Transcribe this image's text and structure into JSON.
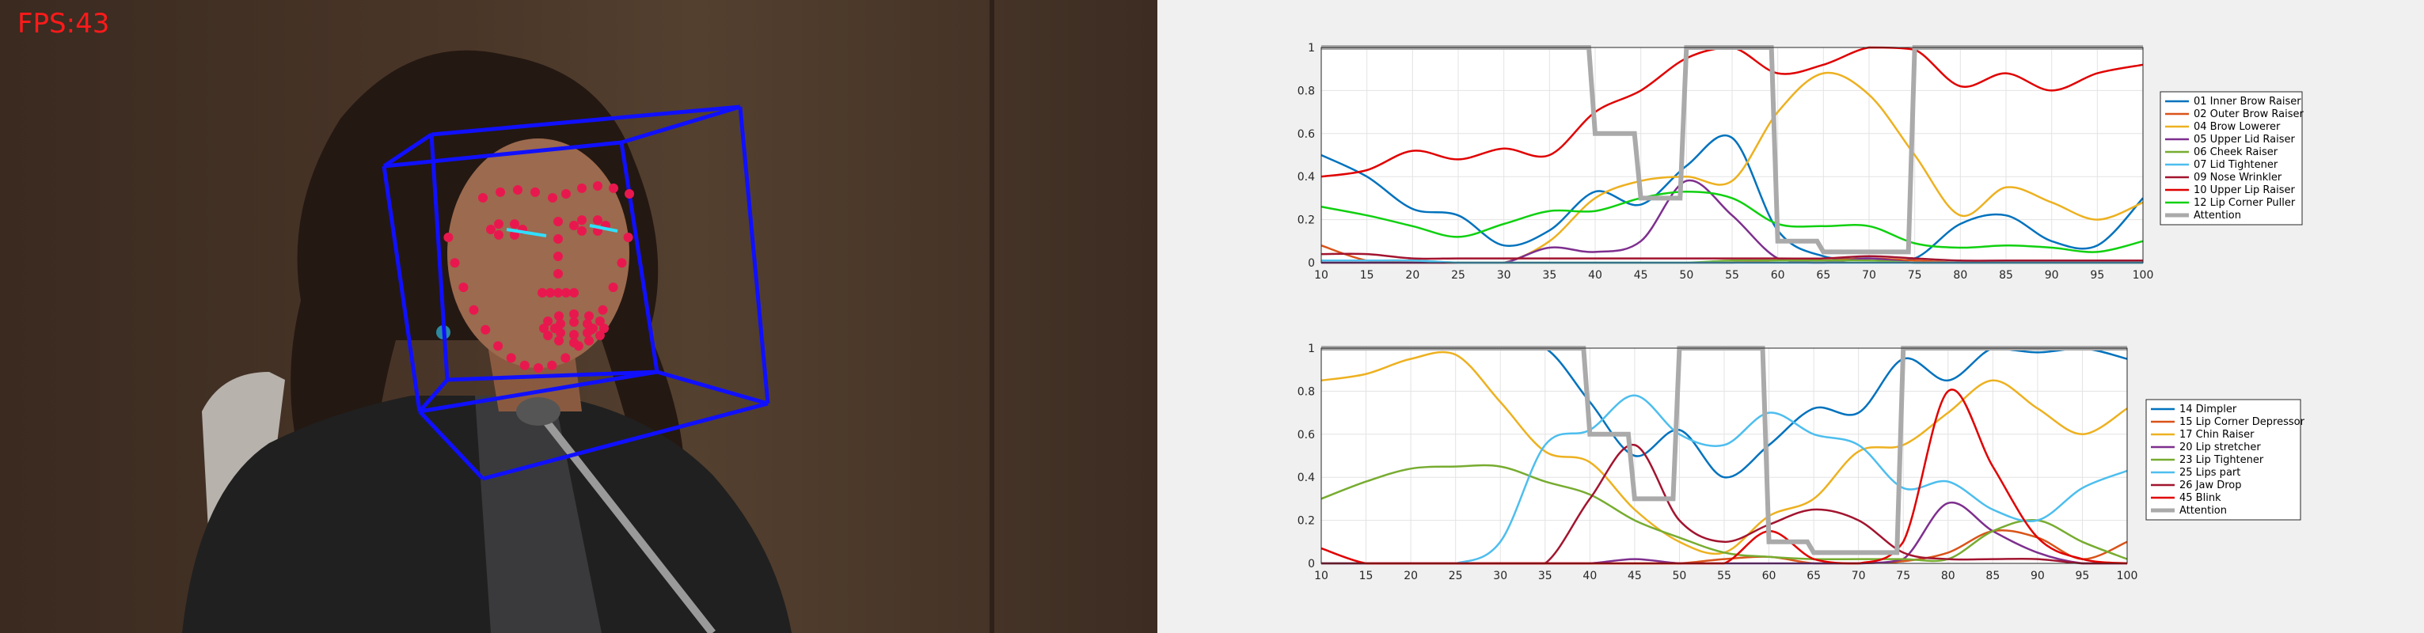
{
  "overlay": {
    "fps_label": "FPS:43",
    "colors": {
      "fps_text": "#ff1a1a",
      "landmark": "#e8184f",
      "head_box": "#1010ff",
      "gaze": "#30e0ff"
    }
  },
  "chart_data": [
    {
      "type": "line",
      "x": [
        10,
        15,
        20,
        25,
        30,
        35,
        40,
        45,
        50,
        55,
        60,
        65,
        70,
        75,
        80,
        85,
        90,
        95,
        100
      ],
      "xlim": [
        10,
        100
      ],
      "ylim": [
        0,
        1
      ],
      "xticks": [
        10,
        15,
        20,
        25,
        30,
        35,
        40,
        45,
        50,
        55,
        60,
        65,
        70,
        75,
        80,
        85,
        90,
        95,
        100
      ],
      "yticks": [
        0,
        0.2,
        0.4,
        0.6,
        0.8,
        1
      ],
      "grid": true,
      "legend_position": "right",
      "series": [
        {
          "name": "01 Inner Brow Raiser",
          "color": "#0072bd",
          "values": [
            0.5,
            0.4,
            0.25,
            0.22,
            0.08,
            0.15,
            0.33,
            0.27,
            0.45,
            0.58,
            0.15,
            0.03,
            0.02,
            0.02,
            0.18,
            0.22,
            0.1,
            0.08,
            0.3
          ]
        },
        {
          "name": "02 Outer Brow Raiser",
          "color": "#d95319",
          "values": [
            0.08,
            0.01,
            0.0,
            0.0,
            0.0,
            0.0,
            0.0,
            0.0,
            0.0,
            0.0,
            0.01,
            0.01,
            0.02,
            0.01,
            0.0,
            0.0,
            0.0,
            0.0,
            0.0
          ]
        },
        {
          "name": "04 Brow Lowerer",
          "color": "#edb120",
          "values": [
            0.0,
            0.0,
            0.0,
            0.0,
            0.0,
            0.1,
            0.3,
            0.38,
            0.4,
            0.38,
            0.7,
            0.88,
            0.78,
            0.5,
            0.22,
            0.35,
            0.28,
            0.2,
            0.28
          ]
        },
        {
          "name": "05 Upper Lid Raiser",
          "color": "#7e2f8e",
          "values": [
            0.0,
            0.0,
            0.0,
            0.0,
            0.0,
            0.07,
            0.05,
            0.1,
            0.38,
            0.22,
            0.02,
            0.0,
            0.02,
            0.0,
            0.0,
            0.0,
            0.0,
            0.0,
            0.0
          ]
        },
        {
          "name": "06 Cheek Raiser",
          "color": "#77ac30",
          "values": [
            0.01,
            0.01,
            0.01,
            0.0,
            0.0,
            0.0,
            0.0,
            0.0,
            0.0,
            0.01,
            0.01,
            0.01,
            0.01,
            0.0,
            0.0,
            0.0,
            0.0,
            0.0,
            0.0
          ]
        },
        {
          "name": "07 Lid Tightener",
          "color": "#4dbeee",
          "values": [
            0.01,
            0.01,
            0.01,
            0.0,
            0.0,
            0.0,
            0.0,
            0.0,
            0.0,
            0.0,
            0.0,
            0.0,
            0.0,
            0.0,
            0.0,
            0.0,
            0.0,
            0.0,
            0.0
          ]
        },
        {
          "name": "09 Nose Wrinkler",
          "color": "#a2142f",
          "values": [
            0.04,
            0.04,
            0.02,
            0.02,
            0.02,
            0.02,
            0.02,
            0.02,
            0.02,
            0.02,
            0.02,
            0.02,
            0.03,
            0.02,
            0.01,
            0.01,
            0.01,
            0.01,
            0.01
          ]
        },
        {
          "name": "10 Upper Lip Raiser",
          "color": "#e00000",
          "values": [
            0.4,
            0.43,
            0.52,
            0.48,
            0.53,
            0.5,
            0.7,
            0.8,
            0.95,
            1.0,
            0.88,
            0.92,
            1.0,
            0.99,
            0.82,
            0.88,
            0.8,
            0.88,
            0.92
          ]
        },
        {
          "name": "12 Lip Corner Puller",
          "color": "#10d010",
          "values": [
            0.26,
            0.22,
            0.17,
            0.12,
            0.18,
            0.24,
            0.24,
            0.3,
            0.33,
            0.3,
            0.18,
            0.17,
            0.17,
            0.09,
            0.07,
            0.08,
            0.07,
            0.05,
            0.1
          ]
        },
        {
          "name": "Attention",
          "color": "#aaaaaa",
          "values": [
            1.0,
            1.0,
            1.0,
            1.0,
            1.0,
            1.0,
            0.6,
            0.3,
            1.0,
            1.0,
            0.1,
            0.05,
            0.05,
            1.0,
            1.0,
            1.0,
            1.0,
            1.0,
            1.0
          ]
        }
      ]
    },
    {
      "type": "line",
      "x": [
        10,
        15,
        20,
        25,
        30,
        35,
        40,
        45,
        50,
        55,
        60,
        65,
        70,
        75,
        80,
        85,
        90,
        95,
        100
      ],
      "xlim": [
        10,
        100
      ],
      "ylim": [
        0,
        1
      ],
      "xticks": [
        10,
        15,
        20,
        25,
        30,
        35,
        40,
        45,
        50,
        55,
        60,
        65,
        70,
        75,
        80,
        85,
        90,
        95,
        100
      ],
      "yticks": [
        0,
        0.2,
        0.4,
        0.6,
        0.8,
        1
      ],
      "grid": true,
      "legend_position": "right",
      "series": [
        {
          "name": "14 Dimpler",
          "color": "#0072bd",
          "values": [
            1.0,
            1.0,
            1.0,
            1.0,
            1.0,
            1.0,
            0.75,
            0.5,
            0.62,
            0.4,
            0.55,
            0.72,
            0.7,
            0.95,
            0.85,
            1.0,
            0.98,
            1.0,
            0.95
          ]
        },
        {
          "name": "15 Lip Corner Depressor",
          "color": "#d95319",
          "values": [
            0.0,
            0.0,
            0.0,
            0.0,
            0.0,
            0.0,
            0.0,
            0.0,
            0.0,
            0.02,
            0.03,
            0.0,
            0.0,
            0.01,
            0.05,
            0.15,
            0.12,
            0.02,
            0.1
          ]
        },
        {
          "name": "17 Chin Raiser",
          "color": "#edb120",
          "values": [
            0.85,
            0.88,
            0.95,
            0.97,
            0.75,
            0.52,
            0.47,
            0.25,
            0.1,
            0.05,
            0.22,
            0.3,
            0.52,
            0.55,
            0.7,
            0.85,
            0.72,
            0.6,
            0.72
          ]
        },
        {
          "name": "20 Lip stretcher",
          "color": "#7e2f8e",
          "values": [
            0.0,
            0.0,
            0.0,
            0.0,
            0.0,
            0.0,
            0.0,
            0.02,
            0.0,
            0.0,
            0.0,
            0.0,
            0.0,
            0.02,
            0.28,
            0.15,
            0.05,
            0.0,
            0.0
          ]
        },
        {
          "name": "23 Lip Tightener",
          "color": "#77ac30",
          "values": [
            0.3,
            0.38,
            0.44,
            0.45,
            0.45,
            0.38,
            0.32,
            0.2,
            0.12,
            0.05,
            0.03,
            0.02,
            0.02,
            0.02,
            0.02,
            0.15,
            0.2,
            0.1,
            0.02
          ]
        },
        {
          "name": "25 Lips part",
          "color": "#4dbeee",
          "values": [
            0.0,
            0.0,
            0.0,
            0.0,
            0.1,
            0.55,
            0.62,
            0.78,
            0.6,
            0.55,
            0.7,
            0.6,
            0.55,
            0.35,
            0.38,
            0.25,
            0.2,
            0.35,
            0.43
          ]
        },
        {
          "name": "26 Jaw Drop",
          "color": "#a2142f",
          "values": [
            0.0,
            0.0,
            0.0,
            0.0,
            0.0,
            0.0,
            0.3,
            0.55,
            0.2,
            0.1,
            0.18,
            0.25,
            0.2,
            0.05,
            0.02,
            0.02,
            0.02,
            0.0,
            0.0
          ]
        },
        {
          "name": "45 Blink",
          "color": "#e00000",
          "values": [
            0.07,
            0.0,
            0.0,
            0.0,
            0.0,
            0.0,
            0.0,
            0.0,
            0.0,
            0.0,
            0.15,
            0.02,
            0.0,
            0.1,
            0.8,
            0.45,
            0.12,
            0.02,
            0.0
          ]
        },
        {
          "name": "Attention",
          "color": "#aaaaaa",
          "values": [
            1.0,
            1.0,
            1.0,
            1.0,
            1.0,
            1.0,
            0.6,
            0.3,
            1.0,
            1.0,
            0.1,
            0.05,
            0.05,
            1.0,
            1.0,
            1.0,
            1.0,
            1.0,
            1.0
          ]
        }
      ]
    }
  ]
}
